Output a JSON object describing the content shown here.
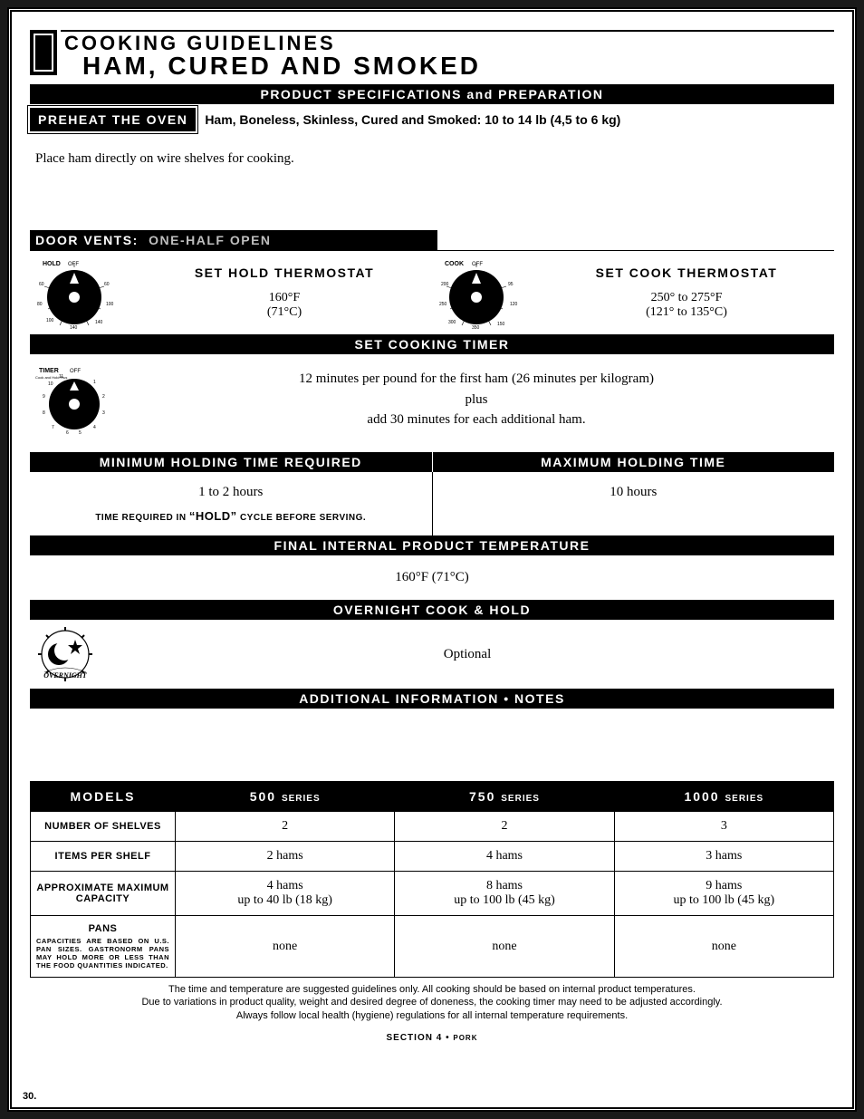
{
  "header": {
    "guidelines": "COOKING GUIDELINES",
    "product": "HAM, CURED AND SMOKED",
    "spec_header": "PRODUCT SPECIFICATIONS and PREPARATION",
    "preheat_label": "PREHEAT THE OVEN",
    "spec_text": "Ham, Boneless, Skinless, Cured and Smoked:  10 to 14 lb (4,5 to 6 kg)",
    "instruction": "Place ham directly on wire shelves for cooking."
  },
  "vents": {
    "label": "DOOR VENTS:",
    "value": "ONE-HALF OPEN"
  },
  "hold_thermo": {
    "label": "SET HOLD THERMOSTAT",
    "value": "160°F",
    "value_c": "(71°C)"
  },
  "cook_thermo": {
    "label": "SET COOK THERMOSTAT",
    "value": "250° to 275°F",
    "value_c": "(121° to 135°C)"
  },
  "timer": {
    "header": "SET COOKING TIMER",
    "line1": "12 minutes per pound for the first ham (26 minutes per kilogram)",
    "line2": "plus",
    "line3": "add 30 minutes for each additional ham."
  },
  "holding": {
    "min_header": "MINIMUM HOLDING TIME REQUIRED",
    "max_header": "MAXIMUM HOLDING TIME",
    "min_value": "1 to 2 hours",
    "max_value": "10 hours",
    "min_note_pre": "TIME REQUIRED IN ",
    "min_note_quoted": "“HOLD”",
    "min_note_post": " CYCLE BEFORE SERVING."
  },
  "final": {
    "header": "FINAL INTERNAL PRODUCT TEMPERATURE",
    "value": "160°F (71°C)"
  },
  "overnight": {
    "header": "OVERNIGHT COOK & HOLD",
    "value": "Optional"
  },
  "notes_header": "ADDITIONAL INFORMATION • NOTES",
  "table": {
    "head_models": "MODELS",
    "series_suffix": "SERIES",
    "col1": "500",
    "col2": "750",
    "col3": "1000",
    "rows": [
      {
        "label": "NUMBER OF SHELVES",
        "sub": "",
        "v1": "2",
        "v2": "2",
        "v3": "3"
      },
      {
        "label": "ITEMS PER SHELF",
        "sub": "",
        "v1": "2 hams",
        "v2": "4 hams",
        "v3": "3 hams"
      },
      {
        "label": "APPROXIMATE MAXIMUM CAPACITY",
        "sub": "",
        "v1": "4 hams\nup to 40 lb (18 kg)",
        "v2": "8 hams\nup to 100 lb (45 kg)",
        "v3": "9 hams\nup to 100 lb (45 kg)"
      },
      {
        "label": "PANS",
        "sub": "CAPACITIES ARE BASED ON U.S. PAN SIZES. GASTRONORM PANS MAY HOLD MORE OR LESS THAN THE FOOD QUANTITIES INDICATED.",
        "v1": "none",
        "v2": "none",
        "v3": "none"
      }
    ]
  },
  "disclaimer": {
    "l1": "The time and temperature are suggested guidelines only.  All cooking should be based on internal product temperatures.",
    "l2": "Due to variations in product quality, weight and desired degree of doneness, the cooking timer may need to be adjusted accordingly.",
    "l3": "Always follow local health (hygiene) regulations for all internal temperature requirements."
  },
  "footer": {
    "section": "SECTION 4 • ",
    "section_sm": "PORK",
    "page": "30."
  },
  "colors": {
    "page_bg": "#ffffff",
    "ink": "#000000",
    "dial_fill": "#000000"
  }
}
